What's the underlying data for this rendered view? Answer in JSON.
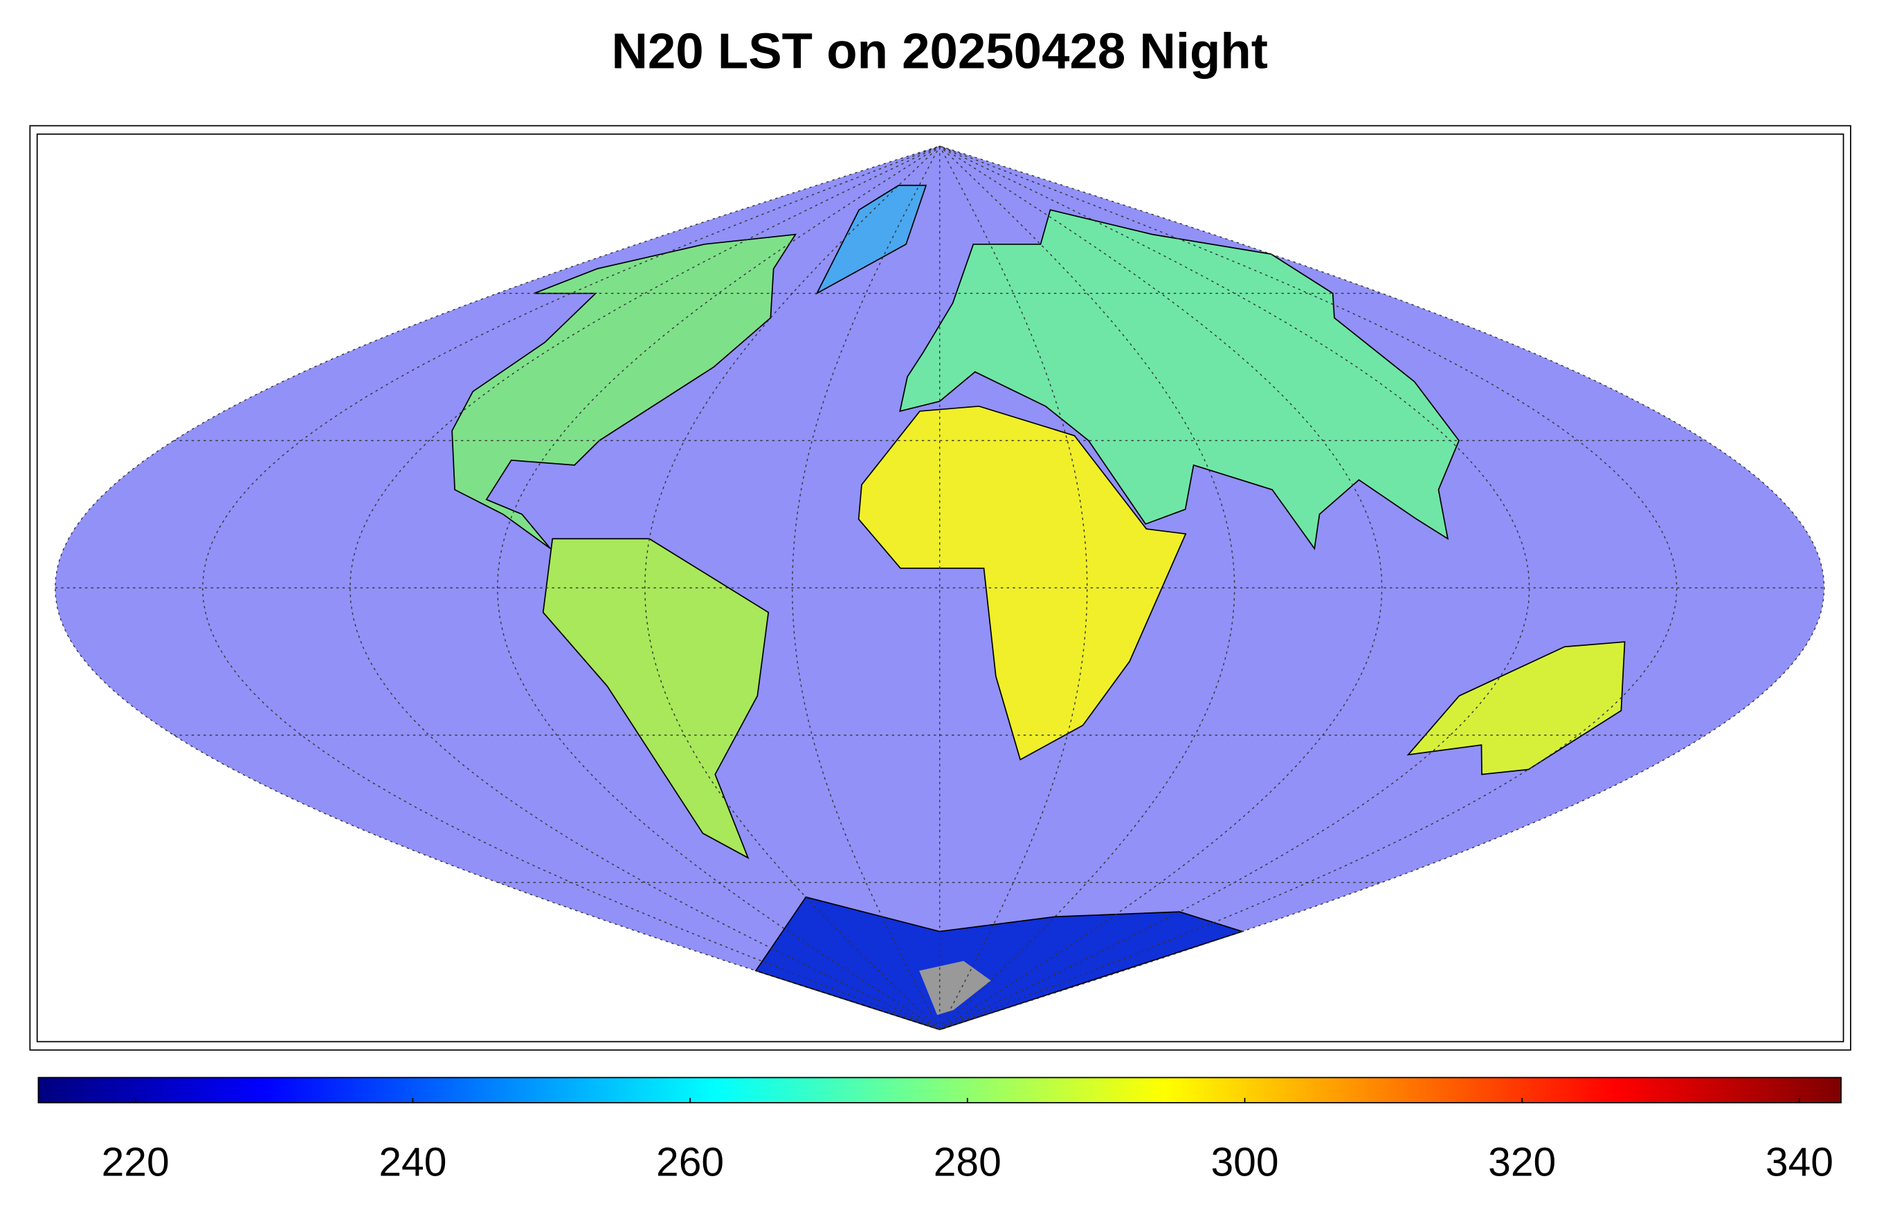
{
  "map": {
    "title": "N20 LST on 20250428 Night"
  },
  "colorbar": {
    "clim": [
      213,
      343
    ],
    "ticks": [
      220,
      240,
      260,
      280,
      300,
      320,
      340
    ],
    "colormap": "jet"
  }
}
